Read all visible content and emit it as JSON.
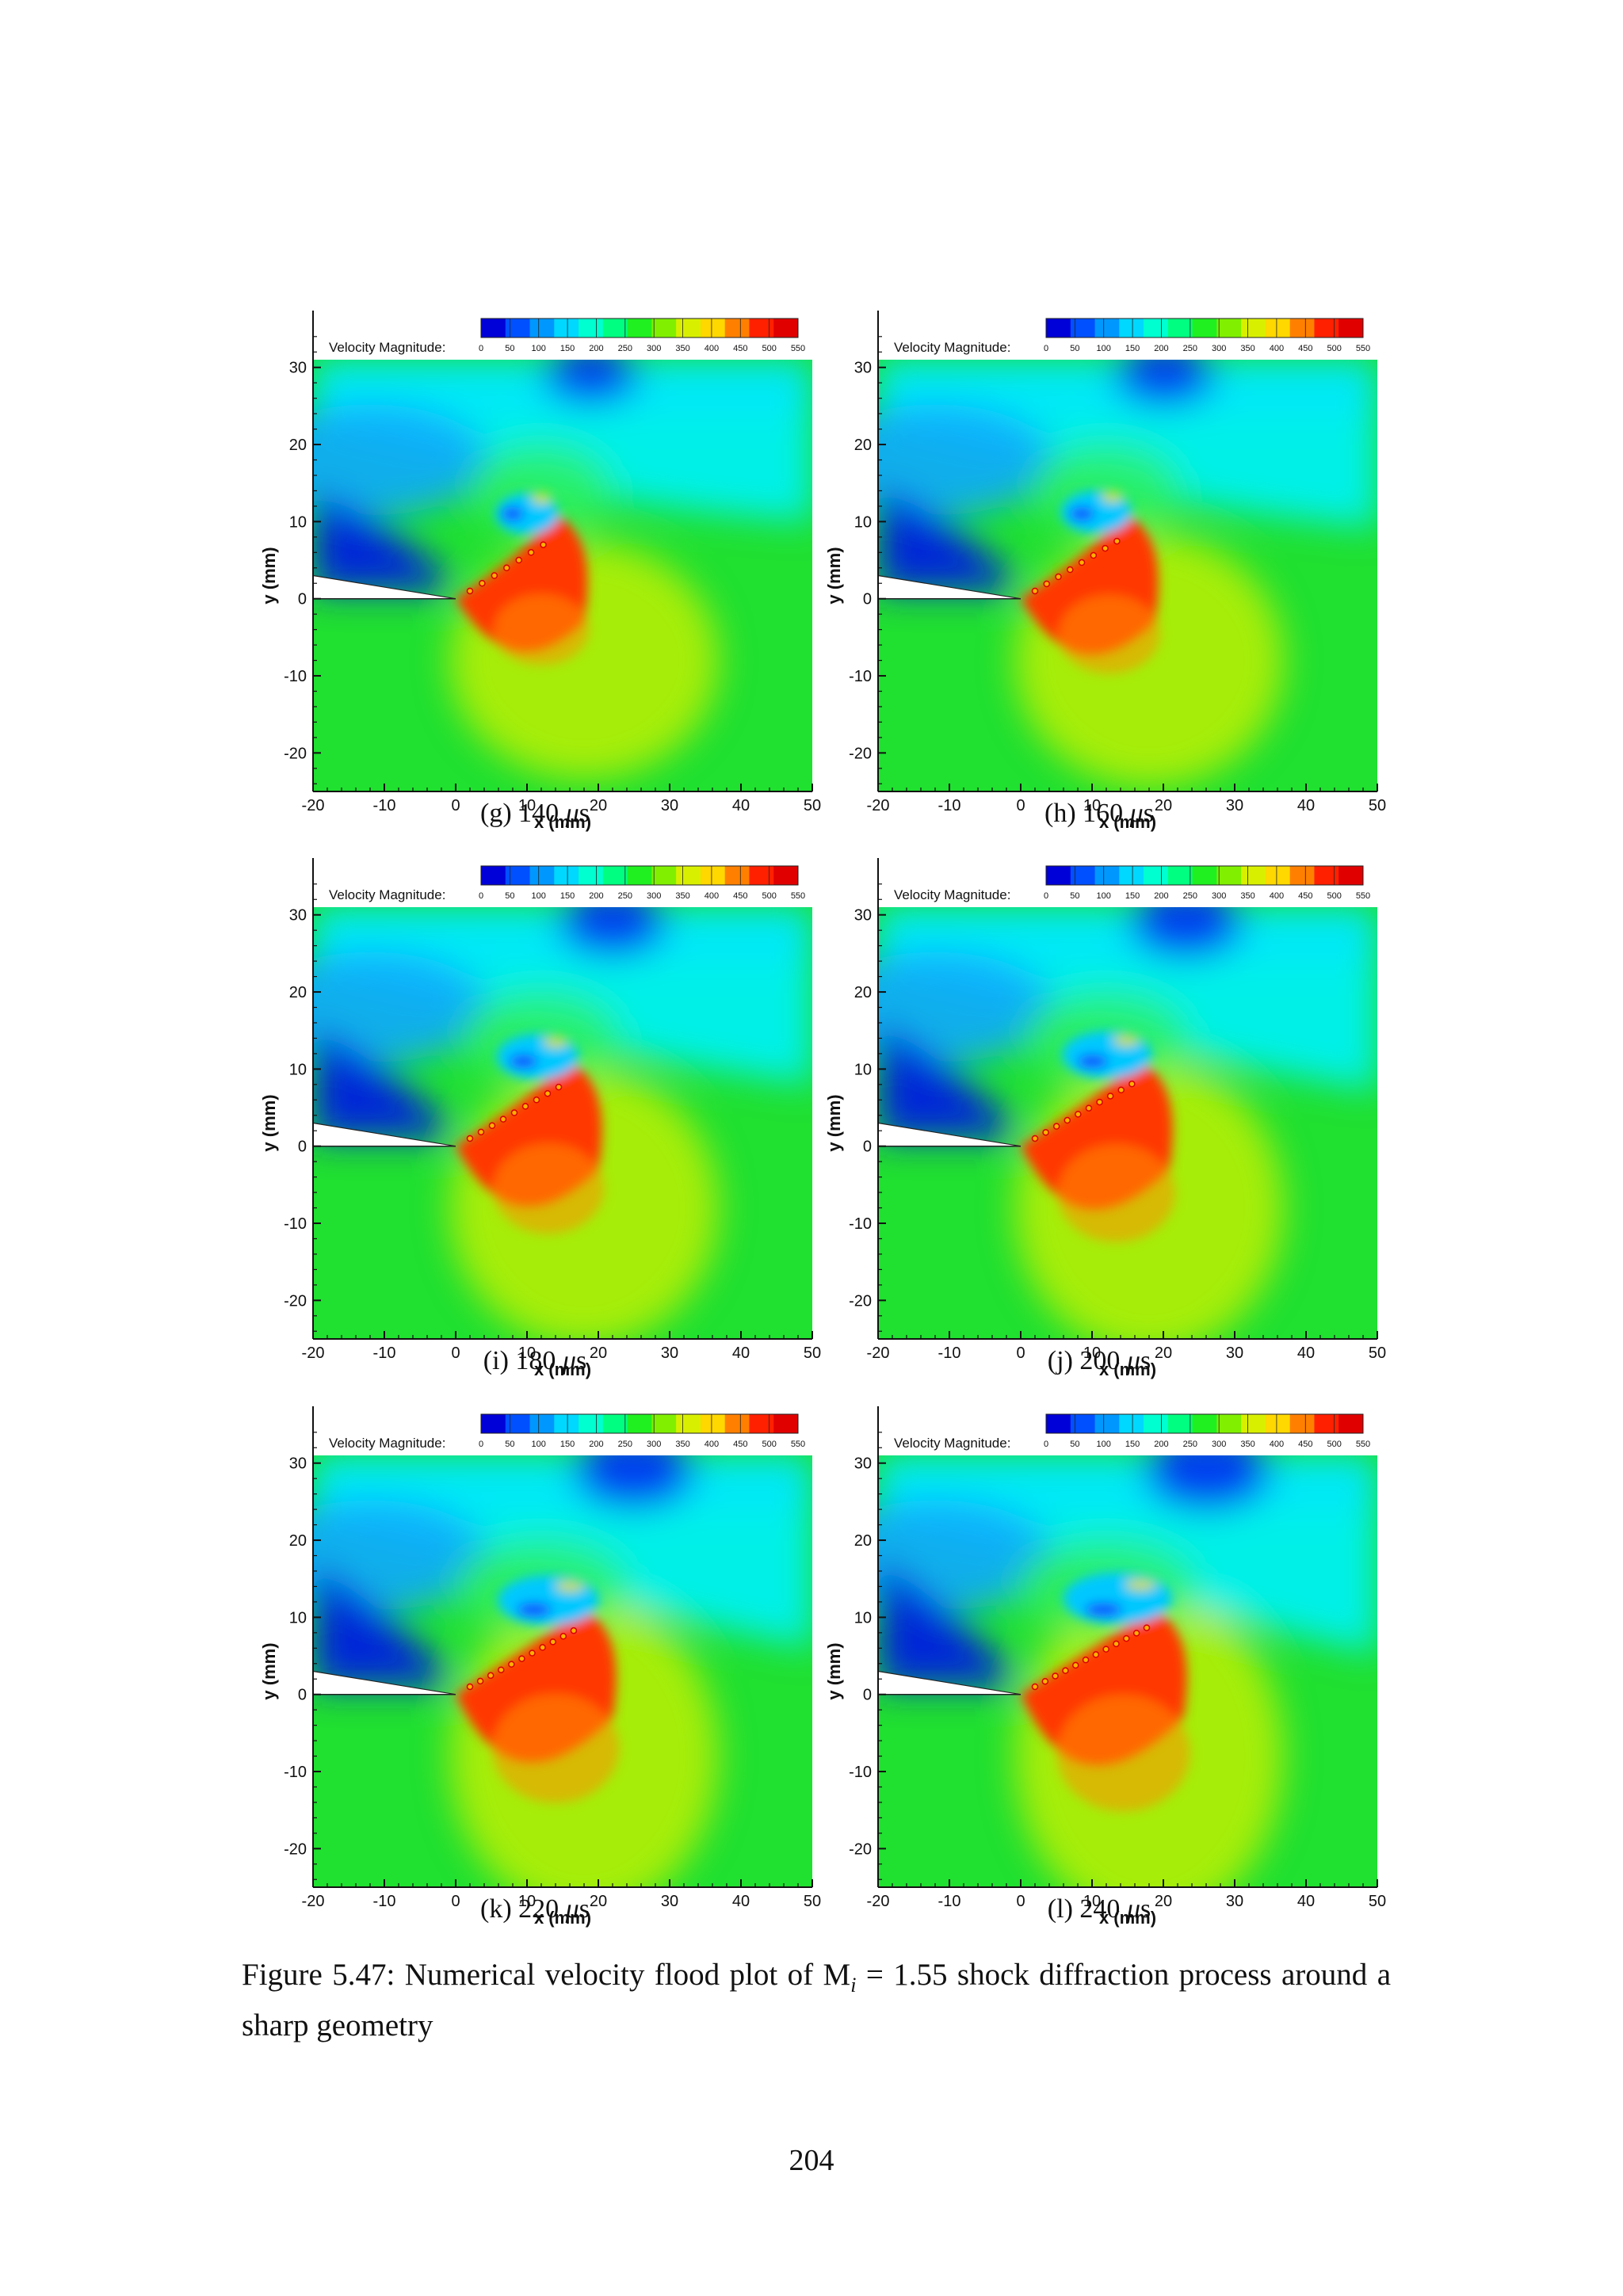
{
  "legend": {
    "title": "Velocity Magnitude:",
    "levels": [
      "0",
      "50",
      "100",
      "150",
      "200",
      "250",
      "300",
      "350",
      "400",
      "450",
      "500",
      "550"
    ],
    "colors": [
      "#0000d8",
      "#0050ff",
      "#0098ff",
      "#00d8ff",
      "#00ffd0",
      "#00ff80",
      "#20f020",
      "#80f000",
      "#d8f000",
      "#ffd800",
      "#ff8000",
      "#ff2000",
      "#e00000"
    ]
  },
  "axes": {
    "xlabel": "x (mm)",
    "ylabel": "y (mm)",
    "xticks": [
      "-20",
      "-10",
      "0",
      "10",
      "20",
      "30",
      "40",
      "50"
    ],
    "yticks": [
      "30",
      "20",
      "10",
      "0",
      "-10",
      "-20"
    ]
  },
  "panels": [
    {
      "label": "(g)",
      "time": "140",
      "unit": "s"
    },
    {
      "label": "(h)",
      "time": "160",
      "unit": "s"
    },
    {
      "label": "(i)",
      "time": "180",
      "unit": "s"
    },
    {
      "label": "(j)",
      "time": "200",
      "unit": "s"
    },
    {
      "label": "(k)",
      "time": "220",
      "unit": "s"
    },
    {
      "label": "(l)",
      "time": "240",
      "unit": "s"
    }
  ],
  "caption": {
    "prefix": "Figure 5.47: Numerical velocity flood plot of M",
    "subscript": "i",
    "suffix": " = 1.55 shock diffraction process around a sharp geometry"
  },
  "page_number": "204",
  "chart_data": [
    {
      "type": "heatmap",
      "title": "",
      "xlabel": "x (mm)",
      "ylabel": "y (mm)",
      "xlim": [
        -20,
        50
      ],
      "ylim": [
        -25,
        31
      ],
      "colorbar": "Velocity Magnitude:",
      "clim": [
        0,
        550
      ],
      "legend": "top"
    },
    {
      "type": "heatmap",
      "title": "",
      "xlabel": "x (mm)",
      "ylabel": "y (mm)",
      "xlim": [
        -20,
        50
      ],
      "ylim": [
        -25,
        31
      ],
      "colorbar": "Velocity Magnitude:",
      "clim": [
        0,
        550
      ],
      "legend": "top"
    },
    {
      "type": "heatmap",
      "title": "",
      "xlabel": "x (mm)",
      "ylabel": "y (mm)",
      "xlim": [
        -20,
        50
      ],
      "ylim": [
        -25,
        31
      ],
      "colorbar": "Velocity Magnitude:",
      "clim": [
        0,
        550
      ],
      "legend": "top"
    },
    {
      "type": "heatmap",
      "title": "",
      "xlabel": "x (mm)",
      "ylabel": "y (mm)",
      "xlim": [
        -20,
        50
      ],
      "ylim": [
        -25,
        31
      ],
      "colorbar": "Velocity Magnitude:",
      "clim": [
        0,
        550
      ],
      "legend": "top"
    },
    {
      "type": "heatmap",
      "title": "",
      "xlabel": "x (mm)",
      "ylabel": "y (mm)",
      "xlim": [
        -20,
        50
      ],
      "ylim": [
        -25,
        31
      ],
      "colorbar": "Velocity Magnitude:",
      "clim": [
        0,
        550
      ],
      "legend": "top"
    },
    {
      "type": "heatmap",
      "title": "",
      "xlabel": "x (mm)",
      "ylabel": "y (mm)",
      "xlim": [
        -20,
        50
      ],
      "ylim": [
        -25,
        31
      ],
      "colorbar": "Velocity Magnitude:",
      "clim": [
        0,
        550
      ],
      "legend": "top"
    }
  ]
}
